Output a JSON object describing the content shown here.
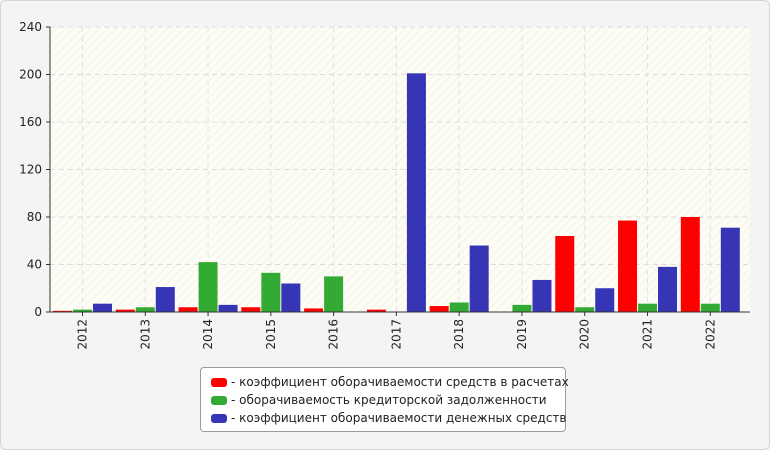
{
  "chart_data": {
    "type": "bar",
    "categories": [
      "2012",
      "2013",
      "2014",
      "2015",
      "2016",
      "2017",
      "2018",
      "2019",
      "2020",
      "2021",
      "2022"
    ],
    "series": [
      {
        "name": "- коэффициент оборачиваемости средств в расчетах",
        "color": "#ff0000",
        "values": [
          1,
          2,
          4,
          4,
          3,
          2,
          5,
          0,
          64,
          77,
          80
        ]
      },
      {
        "name": "- оборачиваемость кредиторской задолженности",
        "color": "#33aa33",
        "values": [
          2,
          4,
          42,
          33,
          30,
          0,
          8,
          6,
          4,
          7,
          7
        ]
      },
      {
        "name": "- коэффициент оборачиваемости денежных средств",
        "color": "#3535b5",
        "values": [
          7,
          21,
          6,
          24,
          0,
          201,
          56,
          27,
          20,
          38,
          71
        ]
      }
    ],
    "ylim": [
      0,
      240
    ],
    "yticks": [
      "0",
      "40",
      "80",
      "120",
      "160",
      "200",
      "240"
    ],
    "grid": true,
    "legend_position": "bottom-center",
    "title": "",
    "xlabel": "",
    "ylabel": ""
  }
}
